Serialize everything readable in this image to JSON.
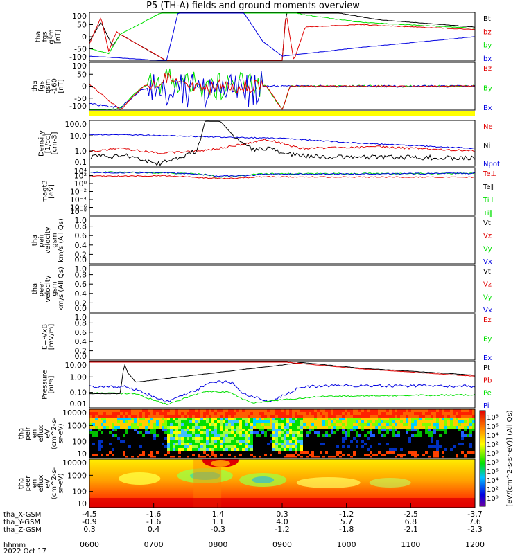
{
  "title": "P5 (TH-A) fields and ground moments overview",
  "colors": {
    "black": "#000000",
    "red": "#e00000",
    "green": "#00e000",
    "blue": "#0000e0",
    "yellow": "#ffff00"
  },
  "chart_data": {
    "type": "line",
    "title": "P5 (TH-A) fields and ground moments overview",
    "xlabel": "hhmm",
    "date_label": "2022 Oct 17",
    "time_ticks": [
      "0600",
      "0700",
      "0800",
      "0900",
      "1000",
      "1100",
      "1200"
    ],
    "orbit_rows": [
      {
        "label": "tha_X-GSM",
        "values": [
          "-4.5",
          "-1.6",
          "1.4",
          "0.3",
          "-1.2",
          "-2.5",
          "-3.7"
        ]
      },
      {
        "label": "tha_Y-GSM",
        "values": [
          "-0.9",
          "-1.6",
          "1.1",
          "4.0",
          "5.7",
          "6.8",
          "7.6"
        ]
      },
      {
        "label": "tha_Z-GSM",
        "values": [
          "0.3",
          "0.4",
          "-0.3",
          "-1.2",
          "-1.8",
          "-2.1",
          "-2.3"
        ]
      }
    ],
    "panels": [
      {
        "id": "fgs",
        "ylabel": [
          "tha",
          "fgs",
          "gsm",
          "[nT]"
        ],
        "y_ticks": [
          "100",
          "50",
          "0",
          "-50",
          "-100"
        ],
        "ylim": [
          -100,
          100
        ],
        "legend": [
          {
            "name": "Bt",
            "color": "#000000"
          },
          {
            "name": "bz",
            "color": "#e00000"
          },
          {
            "name": "by",
            "color": "#00e000"
          },
          {
            "name": "bx",
            "color": "#0000e0"
          }
        ]
      },
      {
        "id": "fgs_dsl",
        "ylabel": [
          "tha",
          "fgs",
          "gsm",
          "-160",
          "[nT]"
        ],
        "y_ticks": [
          "100",
          "50",
          "0",
          "-50",
          "-100"
        ],
        "ylim": [
          -100,
          100
        ],
        "legend": [
          {
            "name": "Bz",
            "color": "#e00000"
          },
          {
            "name": "By",
            "color": "#00e000"
          },
          {
            "name": "Bx",
            "color": "#0000e0"
          }
        ]
      },
      {
        "id": "density",
        "ylabel": [
          "Density",
          "[1/cc]",
          "[cm-3]"
        ],
        "y_ticks": [
          "100.0",
          "10.0",
          "1.0",
          "0.1"
        ],
        "ylim": [
          0.05,
          300
        ],
        "legend": [
          {
            "name": "Ne",
            "color": "#e00000"
          },
          {
            "name": "Ni",
            "color": "#000000"
          },
          {
            "name": "Npot",
            "color": "#0000e0"
          }
        ]
      },
      {
        "id": "temperature",
        "ylabel": [
          "magt3",
          "[eV]"
        ],
        "y_ticks": [
          "10⁴",
          "10²",
          "10⁰",
          "10⁻²",
          "10⁻⁴",
          "10⁻⁶",
          "10⁻⁸"
        ],
        "ylim": [
          1e-09,
          100000.0
        ],
        "legend": [
          {
            "name": "Te⊥",
            "color": "#e00000"
          },
          {
            "name": "Te∥",
            "color": "#000000"
          },
          {
            "name": "Ti⊥",
            "color": "#00e000"
          },
          {
            "name": "Ti∥",
            "color": "#00e000"
          }
        ]
      },
      {
        "id": "peir_velocity",
        "ylabel": [
          "tha",
          "peir",
          "velocity",
          "gsm",
          "km/s (All Qs)"
        ],
        "y_ticks": [
          "1.0",
          "0.8",
          "0.6",
          "0.4",
          "0.2",
          "0.0"
        ],
        "ylim": [
          0,
          1
        ],
        "legend": [
          {
            "name": "Vt",
            "color": "#000000"
          },
          {
            "name": "Vz",
            "color": "#e00000"
          },
          {
            "name": "Vy",
            "color": "#00e000"
          },
          {
            "name": "Vx",
            "color": "#0000e0"
          }
        ]
      },
      {
        "id": "peer_velocity",
        "ylabel": [
          "tha",
          "peer",
          "velocity",
          "gsm",
          "km/s (All Qs)"
        ],
        "y_ticks": [
          "1.0",
          "0.8",
          "0.6",
          "0.4",
          "0.2",
          "0.0"
        ],
        "ylim": [
          0,
          1
        ],
        "legend": [
          {
            "name": "Vt",
            "color": "#000000"
          },
          {
            "name": "Vz",
            "color": "#e00000"
          },
          {
            "name": "Vy",
            "color": "#00e000"
          },
          {
            "name": "Vx",
            "color": "#0000e0"
          }
        ]
      },
      {
        "id": "efield",
        "ylabel": [
          "E=-VxB",
          "[mV/m]"
        ],
        "y_ticks": [
          "1.0",
          "0.8",
          "0.6",
          "0.4",
          "0.2",
          "0.0"
        ],
        "ylim": [
          0,
          1
        ],
        "legend": [
          {
            "name": "Ez",
            "color": "#e00000"
          },
          {
            "name": "Ey",
            "color": "#00e000"
          },
          {
            "name": "Ex",
            "color": "#0000e0"
          }
        ]
      },
      {
        "id": "pressure",
        "ylabel": [
          "Pressure",
          "[nPa]"
        ],
        "y_ticks": [
          "10.00",
          "1.00",
          "0.10",
          "0.01"
        ],
        "ylim": [
          0.003,
          30
        ],
        "legend": [
          {
            "name": "Pt",
            "color": "#000000"
          },
          {
            "name": "Pb",
            "color": "#e00000"
          },
          {
            "name": "Pe",
            "color": "#00e000"
          },
          {
            "name": "Pi",
            "color": "#0000e0"
          }
        ]
      },
      {
        "id": "peir_spec",
        "ylabel": [
          "tha",
          "peir",
          "en",
          "eflux",
          "eV",
          "(cm^2-s-",
          "sr-eV)"
        ],
        "y_ticks": [
          "10000",
          "1000",
          "100",
          "10"
        ],
        "ylim": [
          5,
          25000
        ],
        "legend": []
      },
      {
        "id": "peer_spec",
        "ylabel": [
          "tha",
          "peer",
          "en",
          "eflux",
          "eV",
          "(cm^2-s-",
          "sr-eV)"
        ],
        "y_ticks": [
          "10000",
          "1000",
          "100",
          "10"
        ],
        "ylim": [
          5,
          25000
        ],
        "legend": []
      }
    ],
    "colorbar": {
      "label": "[eV/(cm^2-s-sr-eV)] (All Qs)",
      "ticks": [
        "10⁸",
        "10⁶",
        "10⁴",
        "10²",
        "10⁰",
        "10⁸",
        "10⁶",
        "10⁴",
        "10²",
        "10⁰"
      ]
    }
  }
}
